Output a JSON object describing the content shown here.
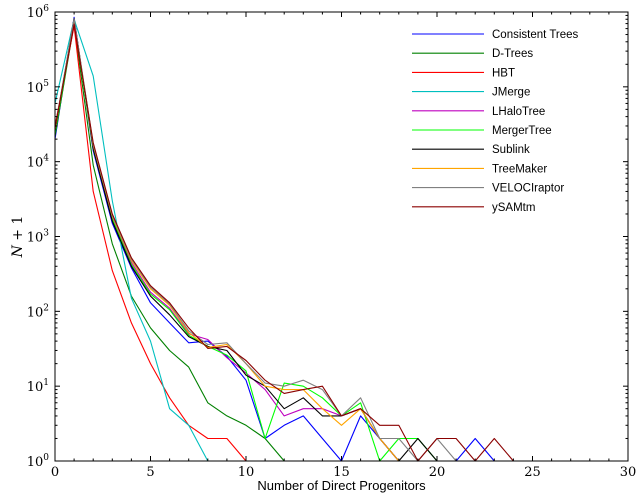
{
  "chart_data": {
    "type": "line",
    "title": "",
    "xlabel": "Number of Direct Progenitors",
    "ylabel": "N + 1",
    "ylabel_math": "N",
    "ylabel_rest": "+ 1",
    "xlim": [
      0,
      30
    ],
    "ylim": [
      1,
      1000000
    ],
    "yscale": "log",
    "grid": false,
    "legend_position": "top-right",
    "xticks": [
      0,
      5,
      10,
      15,
      20,
      25,
      30
    ],
    "xtick_labels": [
      "0",
      "5",
      "10",
      "15",
      "20",
      "25",
      "30"
    ],
    "yticks": [
      1,
      10,
      100,
      1000,
      10000,
      100000,
      1000000
    ],
    "ytick_labels": [
      {
        "base": "10",
        "exp": "0"
      },
      {
        "base": "10",
        "exp": "1"
      },
      {
        "base": "10",
        "exp": "2"
      },
      {
        "base": "10",
        "exp": "3"
      },
      {
        "base": "10",
        "exp": "4"
      },
      {
        "base": "10",
        "exp": "5"
      },
      {
        "base": "10",
        "exp": "6"
      }
    ],
    "series": [
      {
        "name": "Consistent Trees",
        "color": "#0000ff",
        "x": [
          0,
          1,
          2,
          3,
          4,
          5,
          6,
          7,
          8,
          9,
          10,
          11,
          12,
          13,
          14,
          15,
          16,
          17,
          18,
          19,
          20,
          21,
          22,
          23,
          24
        ],
        "y": [
          20000,
          850000,
          14000,
          1500,
          380,
          130,
          70,
          38,
          40,
          25,
          12,
          2,
          3,
          4,
          2,
          1,
          4,
          2,
          1,
          1,
          1,
          1,
          2,
          1,
          1
        ]
      },
      {
        "name": "D-Trees",
        "color": "#008000",
        "x": [
          0,
          1,
          2,
          3,
          4,
          5,
          6,
          7,
          8,
          9,
          10,
          11,
          12,
          13,
          14,
          15,
          16,
          17
        ],
        "y": [
          22000,
          700000,
          9000,
          800,
          160,
          60,
          30,
          18,
          6,
          4,
          3,
          2,
          1,
          1,
          1,
          1,
          1,
          1
        ]
      },
      {
        "name": "HBT",
        "color": "#ff0000",
        "x": [
          0,
          1,
          2,
          3,
          4,
          5,
          6,
          7,
          8,
          9,
          10,
          11
        ],
        "y": [
          30000,
          650000,
          4000,
          350,
          70,
          20,
          7,
          3,
          2,
          2,
          1,
          1
        ]
      },
      {
        "name": "JMerge",
        "color": "#00bfbf",
        "x": [
          0,
          1,
          2,
          3,
          4,
          5,
          6,
          7,
          8,
          9,
          10
        ],
        "y": [
          60000,
          800000,
          140000,
          3000,
          150,
          40,
          5,
          3,
          1,
          1,
          1
        ]
      },
      {
        "name": "LHaloTree",
        "color": "#bf00bf",
        "x": [
          0,
          1,
          2,
          3,
          4,
          5,
          6,
          7,
          8,
          9,
          10,
          11,
          12,
          13,
          14,
          15,
          16,
          17,
          18,
          19,
          20,
          21,
          22
        ],
        "y": [
          25000,
          780000,
          16000,
          1800,
          450,
          180,
          110,
          50,
          42,
          24,
          15,
          9,
          4,
          5,
          5,
          4,
          5,
          2,
          1,
          1,
          1,
          1,
          1
        ]
      },
      {
        "name": "MergerTree",
        "color": "#00ff00",
        "x": [
          0,
          1,
          2,
          3,
          4,
          5,
          6,
          7,
          8,
          9,
          10,
          11,
          12,
          13,
          14,
          15,
          16,
          17,
          18,
          19,
          20,
          21,
          22
        ],
        "y": [
          24000,
          760000,
          15000,
          1700,
          420,
          170,
          105,
          48,
          34,
          26,
          16,
          2,
          11,
          10,
          7,
          4,
          6,
          1,
          2,
          2,
          1,
          1,
          1
        ]
      },
      {
        "name": "Sublink",
        "color": "#000000",
        "x": [
          0,
          1,
          2,
          3,
          4,
          5,
          6,
          7,
          8,
          9,
          10,
          11,
          12,
          13,
          14,
          15,
          16,
          17,
          18,
          19,
          20,
          21,
          22
        ],
        "y": [
          26000,
          820000,
          15000,
          1600,
          400,
          160,
          90,
          46,
          34,
          30,
          14,
          10,
          5,
          7,
          4,
          4,
          5,
          2,
          1,
          2,
          1,
          1,
          1
        ]
      },
      {
        "name": "TreeMaker",
        "color": "#ffa500",
        "x": [
          0,
          1,
          2,
          3,
          4,
          5,
          6,
          7,
          8,
          9,
          10,
          11,
          12,
          13,
          14,
          15,
          16,
          17,
          18,
          19,
          20,
          21,
          22
        ],
        "y": [
          27000,
          790000,
          16500,
          1850,
          480,
          200,
          120,
          52,
          33,
          36,
          20,
          10,
          9,
          9,
          5,
          3,
          5,
          2,
          1,
          1,
          1,
          1,
          1
        ]
      },
      {
        "name": "VELOCIraptor",
        "color": "#808080",
        "x": [
          0,
          1,
          2,
          3,
          4,
          5,
          6,
          7,
          8,
          9,
          10,
          11,
          12,
          13,
          14,
          15,
          16,
          17,
          18,
          19,
          20,
          21,
          22
        ],
        "y": [
          28000,
          810000,
          17000,
          1900,
          500,
          210,
          125,
          55,
          36,
          38,
          20,
          11,
          10,
          12,
          9,
          4,
          7,
          2,
          2,
          1,
          2,
          1,
          1
        ]
      },
      {
        "name": "ySAMtm",
        "color": "#8b0000",
        "x": [
          0,
          1,
          2,
          3,
          4,
          5,
          6,
          7,
          8,
          9,
          10,
          11,
          12,
          13,
          14,
          15,
          16,
          17,
          18,
          19,
          20,
          21,
          22,
          23,
          24
        ],
        "y": [
          28000,
          690000,
          18000,
          2000,
          520,
          220,
          130,
          60,
          32,
          34,
          22,
          12,
          8,
          9,
          10,
          4,
          5,
          3,
          3,
          1,
          2,
          2,
          1,
          2,
          1
        ]
      }
    ]
  }
}
